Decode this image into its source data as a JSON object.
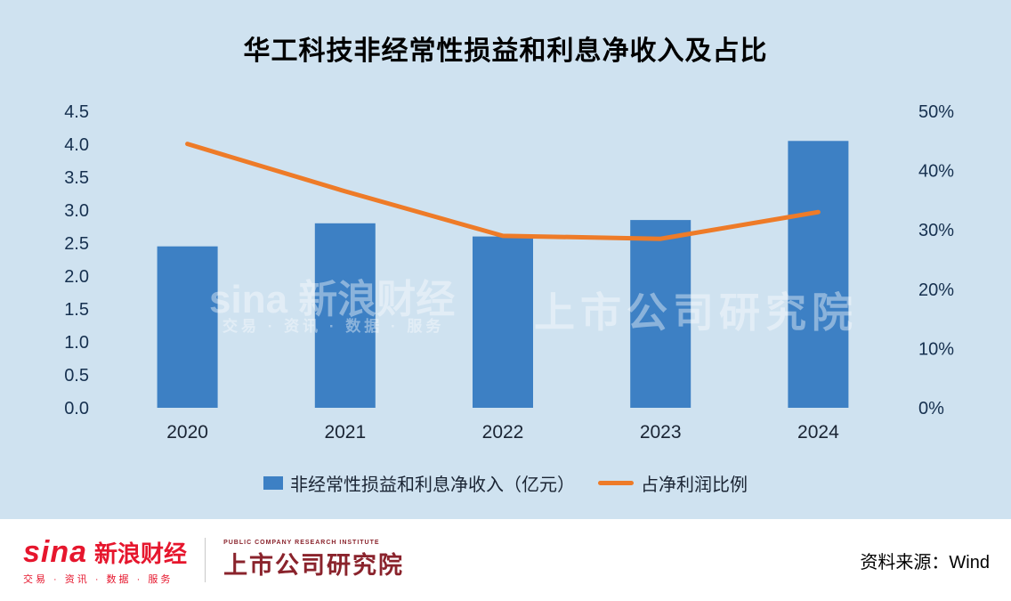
{
  "chart_data": {
    "type": "bar",
    "title": "华工科技非经常性损益和利息净收入及占比",
    "categories": [
      "2020",
      "2021",
      "2022",
      "2023",
      "2024"
    ],
    "series": [
      {
        "name": "非经常性损益和利息净收入（亿元）",
        "type": "bar",
        "axis": "left",
        "values": [
          2.45,
          2.8,
          2.6,
          2.85,
          4.05
        ],
        "color": "#3d80c4"
      },
      {
        "name": "占净利润比例",
        "type": "line",
        "axis": "right",
        "values": [
          44.5,
          36.5,
          29,
          28.5,
          33
        ],
        "color": "#ee7b28"
      }
    ],
    "left_axis": {
      "min": 0,
      "max": 4.5,
      "step": 0.5,
      "tick_labels": [
        "0.0",
        "0.5",
        "1.0",
        "1.5",
        "2.0",
        "2.5",
        "3.0",
        "3.5",
        "4.0",
        "4.5"
      ]
    },
    "right_axis": {
      "min": 0,
      "max": 50,
      "step": 10,
      "tick_labels": [
        "0%",
        "10%",
        "20%",
        "30%",
        "40%",
        "50%"
      ]
    },
    "grid": false,
    "legend_position": "bottom",
    "background_color": "#cfe2f0"
  },
  "watermarks": {
    "left_line1": "sina 新浪财经",
    "left_line2": "交易 · 资讯 · 数据 · 服务",
    "right": "上市公司研究院"
  },
  "footer": {
    "sina_logo_text": "sina",
    "sina_brand": "新浪财经",
    "sina_tagline": "交易 · 资讯 · 数据 · 服务",
    "institute_caption": "PUBLIC COMPANY RESEARCH INSTITUTE",
    "institute_name": "上市公司研究院",
    "source": "资料来源：Wind"
  }
}
